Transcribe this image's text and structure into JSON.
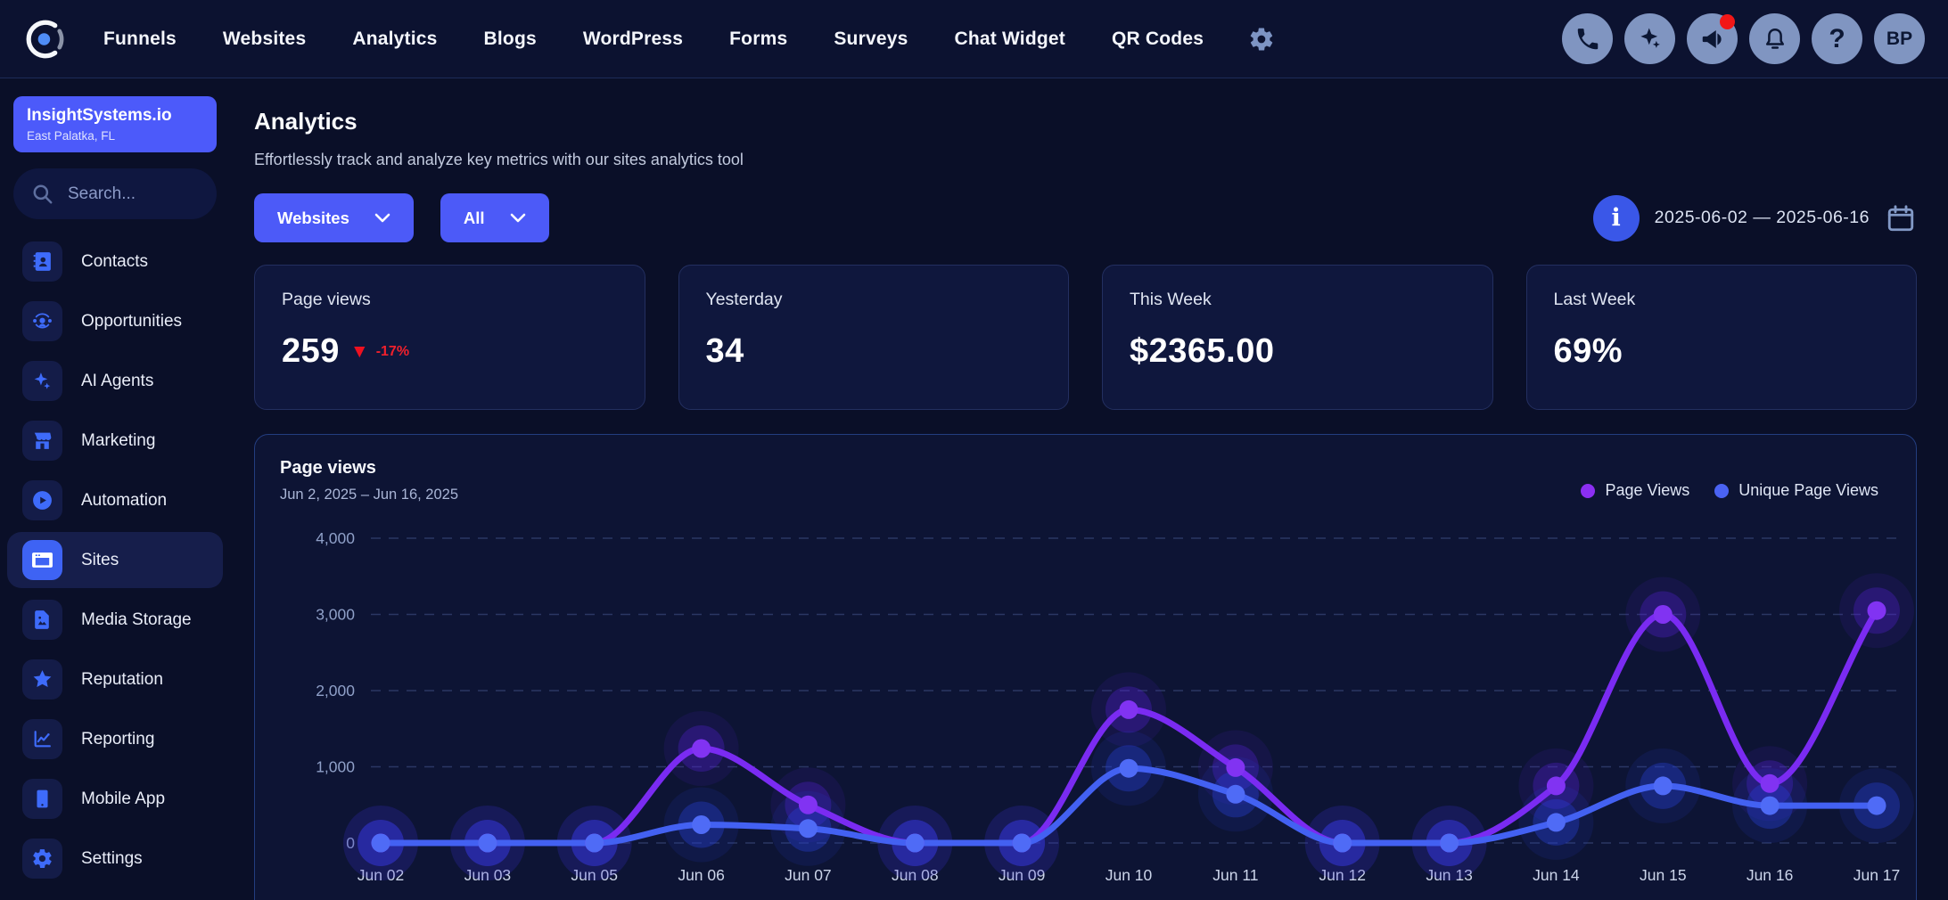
{
  "topbar": {
    "nav": [
      "Funnels",
      "Websites",
      "Analytics",
      "Blogs",
      "WordPress",
      "Forms",
      "Surveys",
      "Chat Widget",
      "QR Codes"
    ],
    "right_icons": [
      {
        "name": "phone-icon",
        "badge": false
      },
      {
        "name": "ai-assistant-icon",
        "badge": false
      },
      {
        "name": "announcements-icon",
        "badge": true
      },
      {
        "name": "notifications-icon",
        "badge": false
      },
      {
        "name": "help-icon",
        "badge": false
      }
    ],
    "avatar_initials": "BP"
  },
  "sidebar": {
    "account": {
      "name": "InsightSystems.io",
      "location": "East Palatka, FL"
    },
    "search_placeholder": "Search...",
    "items": [
      {
        "label": "Contacts",
        "icon": "contacts-icon",
        "active": false
      },
      {
        "label": "Opportunities",
        "icon": "opportunities-icon",
        "active": false
      },
      {
        "label": "AI Agents",
        "icon": "ai-agents-icon",
        "active": false
      },
      {
        "label": "Marketing",
        "icon": "marketing-icon",
        "active": false
      },
      {
        "label": "Automation",
        "icon": "automation-icon",
        "active": false
      },
      {
        "label": "Sites",
        "icon": "sites-icon",
        "active": true
      },
      {
        "label": "Media Storage",
        "icon": "media-storage-icon",
        "active": false
      },
      {
        "label": "Reputation",
        "icon": "reputation-icon",
        "active": false
      },
      {
        "label": "Reporting",
        "icon": "reporting-icon",
        "active": false
      },
      {
        "label": "Mobile App",
        "icon": "mobile-app-icon",
        "active": false
      },
      {
        "label": "Settings",
        "icon": "settings-icon",
        "active": false
      }
    ]
  },
  "page": {
    "title": "Analytics",
    "subtitle": "Effortlessly track and analyze key metrics with our sites analytics tool",
    "filters": {
      "site_type": "Websites",
      "range": "All"
    },
    "info_glyph": "i",
    "date_range": "2025-06-02 — 2025-06-16"
  },
  "stats": [
    {
      "label": "Page views",
      "value": "259",
      "delta": "-17%",
      "delta_direction": "down"
    },
    {
      "label": "Yesterday",
      "value": "34"
    },
    {
      "label": "This Week",
      "value": "$2365.00"
    },
    {
      "label": "Last Week",
      "value": "69%"
    }
  ],
  "chart_data": {
    "type": "line",
    "title": "Page views",
    "subtitle": "Jun 2, 2025 – Jun 16, 2025",
    "categories": [
      "Jun 02",
      "Jun 03",
      "Jun 05",
      "Jun 06",
      "Jun 07",
      "Jun 08",
      "Jun 09",
      "Jun 10",
      "Jun 11",
      "Jun 12",
      "Jun 13",
      "Jun 14",
      "Jun 15",
      "Jun 16",
      "Jun 17"
    ],
    "series": [
      {
        "name": "Page Views",
        "color": "#7a2bf2",
        "dot_color": "#8133f2",
        "glow": "rgba(84,32,215,0.32)",
        "values": [
          0,
          0,
          0,
          1240,
          500,
          0,
          0,
          1750,
          990,
          0,
          0,
          750,
          3000,
          780,
          3050
        ]
      },
      {
        "name": "Unique Page Views",
        "color": "#4361f2",
        "dot_color": "#4f6bf6",
        "glow": "rgba(38,64,215,0.36)",
        "values": [
          0,
          0,
          0,
          240,
          190,
          0,
          0,
          980,
          640,
          0,
          0,
          270,
          750,
          490,
          490
        ]
      }
    ],
    "ylim": [
      0,
      4000
    ],
    "yticks": [
      0,
      1000,
      2000,
      3000,
      4000
    ],
    "ytick_labels": [
      "0",
      "1,000",
      "2,000",
      "3,000",
      "4,000"
    ],
    "grid": "horizontal-dashed",
    "legend_position": "top-right"
  },
  "colors": {
    "accent": "#4c5af8",
    "purple_series": "#7a2bf2",
    "blue_series": "#4361f2",
    "negative": "#ee1020",
    "panel_border": "#233d7f"
  }
}
